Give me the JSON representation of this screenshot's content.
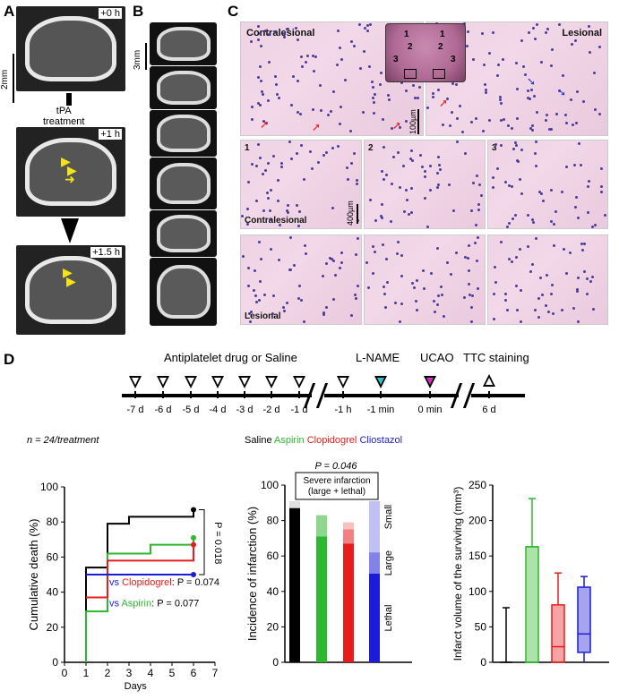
{
  "panels": {
    "a": "A",
    "b": "B",
    "c": "C",
    "d": "D"
  },
  "panel_a": {
    "times": [
      "+0 h",
      "+1 h",
      "+1.5 h"
    ],
    "scale": "2mm",
    "treatment": "tPA\ntreatment"
  },
  "panel_b": {
    "scale": "3mm"
  },
  "panel_c": {
    "contralesional": "Contralesional",
    "lesional": "Lesional",
    "scale_top": "100µm",
    "scale_mid": "400µm",
    "inset_regions": [
      "1",
      "2",
      "3"
    ],
    "grid_numbers": [
      "1",
      "2",
      "3"
    ],
    "row_labels": [
      "Contralesional",
      "Lesional"
    ]
  },
  "timeline": {
    "title": "Antiplatelet drug  or Saline",
    "lname": "L-NAME",
    "ucao": "UCAO",
    "ttc": "TTC staining",
    "ticks": [
      "-7 d",
      "-6 d",
      "-5 d",
      "-4 d",
      "-3 d",
      "-2 d",
      "-1 d",
      "-1 h",
      "-1 min",
      "0 min",
      "6 d"
    ],
    "colors": {
      "lname": "#29c4d8",
      "ucao": "#d629c4"
    }
  },
  "n_label": "n = 24/treatment",
  "legend": {
    "saline": "Saline",
    "aspirin": "Aspirin",
    "clopidogrel": "Clopidogrel",
    "cliostazol": "Cliostazol",
    "colors": {
      "saline": "#000000",
      "aspirin": "#2db82d",
      "clopidogrel": "#e81c1c",
      "cliostazol": "#1c1cd6"
    }
  },
  "chart_data": [
    {
      "type": "line",
      "subtype": "step",
      "xlabel": "Days",
      "ylabel": "Cumulative death (%)",
      "xlim": [
        0,
        7
      ],
      "ylim": [
        0,
        100
      ],
      "xticks": [
        0,
        1,
        2,
        3,
        4,
        5,
        6,
        7
      ],
      "yticks": [
        0,
        20,
        40,
        60,
        80,
        100
      ],
      "series": [
        {
          "name": "Saline",
          "color": "#000000",
          "points": [
            [
              1,
              0
            ],
            [
              1,
              54
            ],
            [
              2,
              54
            ],
            [
              2,
              79
            ],
            [
              3,
              79
            ],
            [
              3,
              83
            ],
            [
              6,
              83
            ],
            [
              6,
              87
            ]
          ]
        },
        {
          "name": "Aspirin",
          "color": "#2db82d",
          "points": [
            [
              1,
              0
            ],
            [
              1,
              29
            ],
            [
              2,
              29
            ],
            [
              2,
              62
            ],
            [
              4,
              62
            ],
            [
              4,
              67
            ],
            [
              6,
              67
            ],
            [
              6,
              71
            ]
          ]
        },
        {
          "name": "Clopidogrel",
          "color": "#e81c1c",
          "points": [
            [
              1,
              37
            ],
            [
              2,
              37
            ],
            [
              2,
              58
            ],
            [
              6,
              58
            ],
            [
              6,
              67
            ]
          ]
        },
        {
          "name": "Cliostazol",
          "color": "#1c1cd6",
          "points": [
            [
              1,
              50
            ],
            [
              6,
              50
            ]
          ]
        }
      ],
      "annotations": {
        "p_saline": "P = 0.018",
        "clop_prefix": "vs ",
        "clop_name": "Clopidogrel",
        "clop_suffix": ": P = 0.074",
        "asp_prefix": "vs ",
        "asp_name": "Aspirin",
        "asp_suffix": ": P = 0.077"
      }
    },
    {
      "type": "bar",
      "subtype": "stacked",
      "ylabel": "Incidence of infarction (%)",
      "ylim": [
        0,
        100
      ],
      "yticks": [
        0,
        20,
        40,
        60,
        80,
        100
      ],
      "categories": [
        "Saline",
        "Aspirin",
        "Clopidogrel",
        "Cliostazol"
      ],
      "colors": [
        "#000000",
        "#2db82d",
        "#e81c1c",
        "#1c1cd6"
      ],
      "series": [
        {
          "name": "Lethal",
          "values": [
            87,
            71,
            67,
            50
          ]
        },
        {
          "name": "Large",
          "values": [
            0,
            12,
            8,
            12
          ]
        },
        {
          "name": "Small",
          "values": [
            4,
            0,
            4,
            29
          ]
        }
      ],
      "annotations": {
        "p": "P = 0.046",
        "bracket": "Severe infarction\n(large + lethal)",
        "small": "Small",
        "large": "Large",
        "lethal": "Lethal"
      }
    },
    {
      "type": "box",
      "ylabel": "Infarct volume of the surviving (mm³)",
      "ylim": [
        0,
        250
      ],
      "yticks": [
        0,
        50,
        100,
        150,
        200,
        250
      ],
      "categories": [
        "Saline",
        "Aspirin",
        "Clopidogrel",
        "Cliostazol"
      ],
      "colors": [
        "#000000",
        "#2db82d",
        "#e81c1c",
        "#1c1cd6"
      ],
      "boxes": [
        {
          "min": 0,
          "q1": 0,
          "median": 0,
          "q3": 0,
          "max": 77
        },
        {
          "min": 0,
          "q1": 0,
          "median": 163,
          "q3": 163,
          "max": 231
        },
        {
          "min": 0,
          "q1": 0,
          "median": 22,
          "q3": 81,
          "max": 126
        },
        {
          "min": 0,
          "q1": 14,
          "median": 40,
          "q3": 106,
          "max": 121
        }
      ]
    }
  ]
}
